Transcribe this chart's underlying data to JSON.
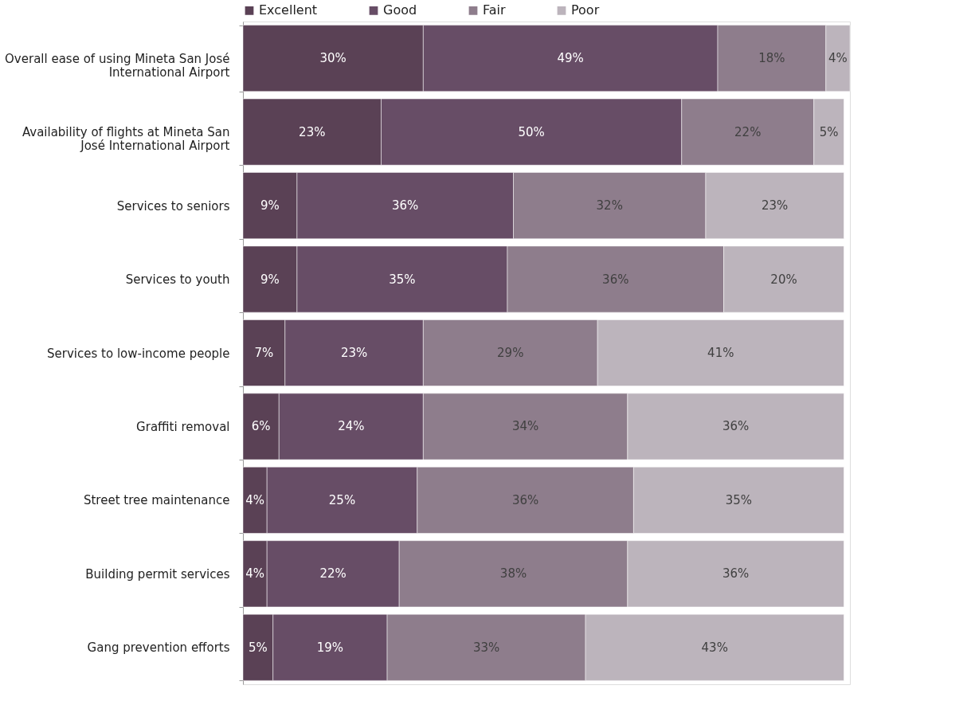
{
  "chart_data": {
    "type": "bar",
    "orientation": "horizontal",
    "stacked": true,
    "legend": "top",
    "tick_labels": "y",
    "grid": false,
    "categories": [
      "Overall ease of using Mineta San José International Airport",
      "Availability of flights at Mineta San José International Airport",
      "Services to seniors",
      "Services to youth",
      "Services to low-income people",
      "Graffiti removal",
      "Street tree maintenance",
      "Building permit services",
      "Gang prevention efforts"
    ],
    "series": [
      {
        "name": "Excellent",
        "color": "#5a4155",
        "values": [
          30,
          23,
          9,
          9,
          7,
          6,
          4,
          4,
          5
        ],
        "value_labels": [
          "30%",
          "23%",
          "9%",
          "9%",
          "7%",
          "6%",
          "4%",
          "4%",
          "5%"
        ]
      },
      {
        "name": "Good",
        "color": "#674d66",
        "values": [
          49,
          50,
          36,
          35,
          23,
          24,
          25,
          22,
          19
        ],
        "value_labels": [
          "49%",
          "50%",
          "36%",
          "35%",
          "23%",
          "24%",
          "25%",
          "22%",
          "19%"
        ]
      },
      {
        "name": "Fair",
        "color": "#8e7d8c",
        "values": [
          18,
          22,
          32,
          36,
          29,
          34,
          36,
          38,
          33
        ],
        "value_labels": [
          "18%",
          "22%",
          "32%",
          "36%",
          "29%",
          "34%",
          "36%",
          "38%",
          "33%"
        ]
      },
      {
        "name": "Poor",
        "color": "#bcb4bc",
        "values": [
          4,
          5,
          23,
          20,
          41,
          36,
          35,
          36,
          43
        ],
        "value_labels": [
          "4%",
          "5%",
          "23%",
          "20%",
          "41%",
          "36%",
          "35%",
          "36%",
          "43%"
        ]
      }
    ]
  }
}
